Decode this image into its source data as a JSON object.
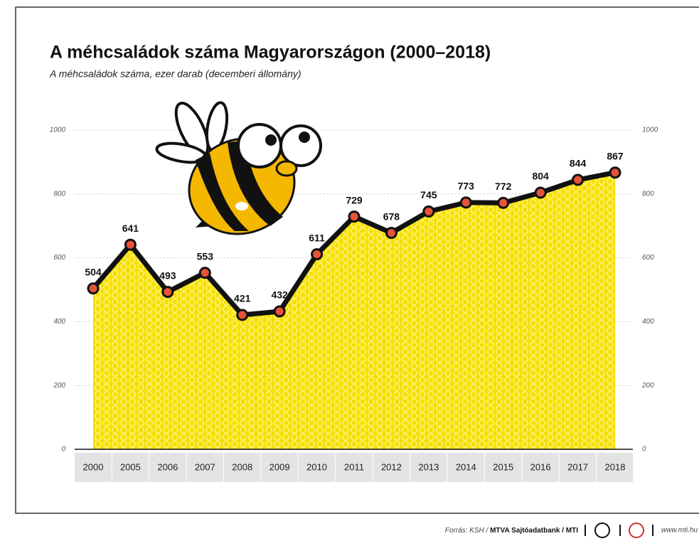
{
  "chart_data": {
    "type": "area-line",
    "title": "A méhcsaládok száma Magyarországon (2000–2018)",
    "subtitle": "A méhcsaládok száma, ezer darab (decemberi állomány)",
    "categories": [
      "2000",
      "2005",
      "2006",
      "2007",
      "2008",
      "2009",
      "2010",
      "2011",
      "2012",
      "2013",
      "2014",
      "2015",
      "2016",
      "2017",
      "2018"
    ],
    "values": [
      504,
      641,
      493,
      553,
      421,
      432,
      611,
      729,
      678,
      745,
      773,
      772,
      804,
      844,
      867
    ],
    "color": "#f5e000",
    "line_color": "#111111",
    "marker_color": "#e5533a",
    "ylim": [
      0,
      1000
    ],
    "yticks": [
      0,
      200,
      400,
      600,
      800,
      1000
    ],
    "y2lim": [
      0,
      1000
    ],
    "y2ticks": [
      0,
      200,
      400,
      600,
      800,
      1000
    ],
    "grid": true,
    "source": "Forrás: KSH /",
    "source_bold": "MTVA Sajtóadatbank / MTI",
    "website": "www.mti.hu"
  }
}
